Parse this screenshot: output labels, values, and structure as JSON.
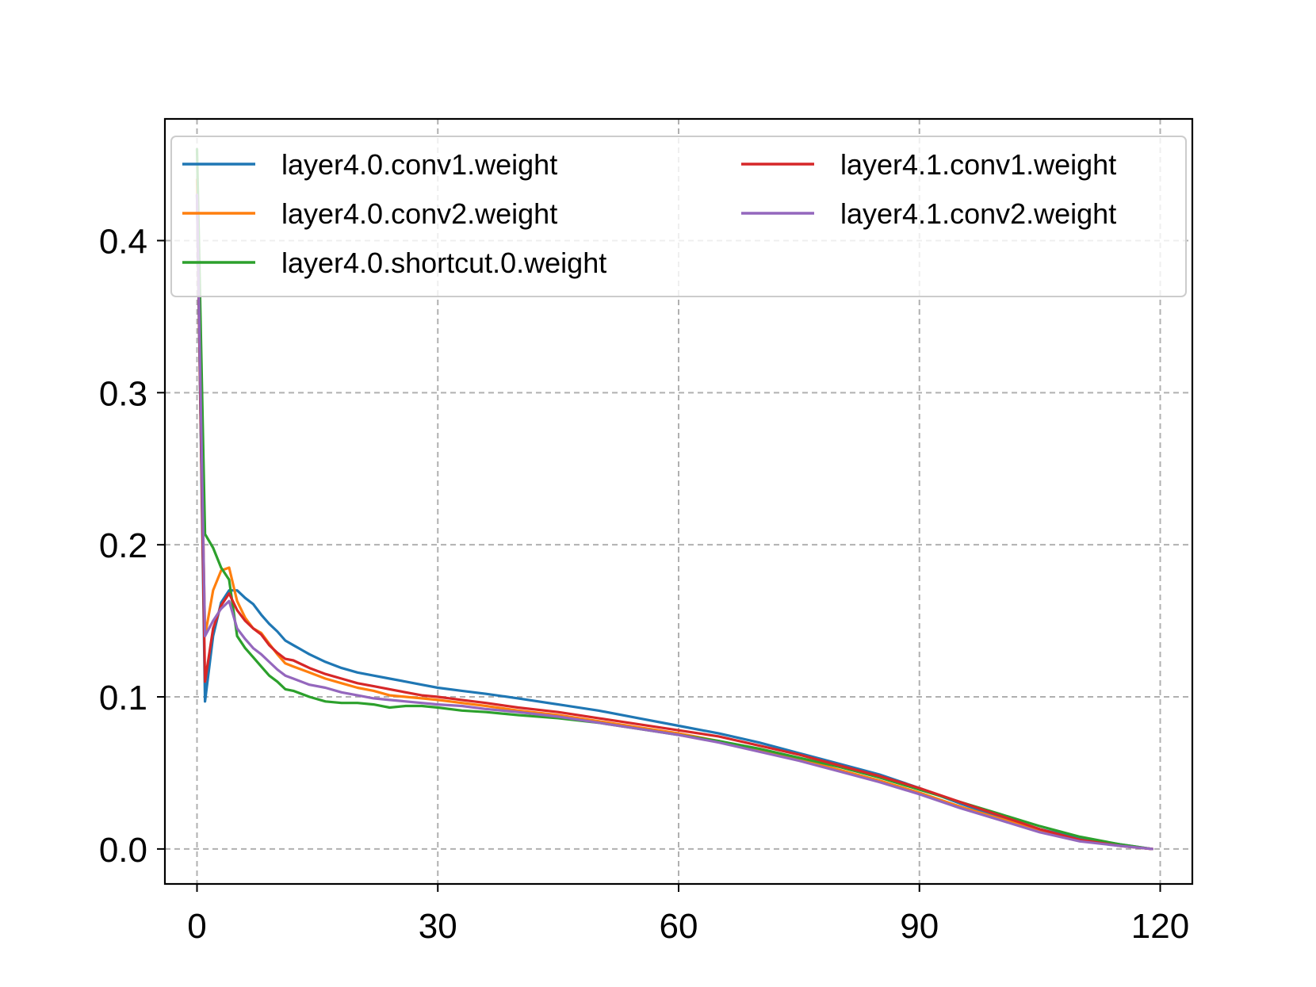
{
  "chart_data": {
    "type": "line",
    "title": "",
    "xlabel": "",
    "ylabel": "",
    "xlim": [
      -4,
      124
    ],
    "ylim": [
      -0.023,
      0.48
    ],
    "xticks": [
      0,
      30,
      60,
      90,
      120
    ],
    "yticks": [
      0.0,
      0.1,
      0.2,
      0.3,
      0.4
    ],
    "xtick_labels": [
      "0",
      "30",
      "60",
      "90",
      "120"
    ],
    "ytick_labels": [
      "0.0",
      "0.1",
      "0.2",
      "0.3",
      "0.4"
    ],
    "grid": true,
    "legend": {
      "position": "top",
      "columns": 2
    },
    "series": [
      {
        "name": "layer4.0.conv1.weight",
        "color": "#1f77b4",
        "points": [
          [
            0,
            0.43
          ],
          [
            1,
            0.097
          ],
          [
            2,
            0.14
          ],
          [
            3,
            0.162
          ],
          [
            4,
            0.17
          ],
          [
            5,
            0.17
          ],
          [
            6,
            0.165
          ],
          [
            7,
            0.161
          ],
          [
            8,
            0.154
          ],
          [
            9,
            0.148
          ],
          [
            10,
            0.143
          ],
          [
            11,
            0.137
          ],
          [
            12,
            0.134
          ],
          [
            14,
            0.128
          ],
          [
            16,
            0.123
          ],
          [
            18,
            0.119
          ],
          [
            20,
            0.116
          ],
          [
            22,
            0.114
          ],
          [
            24,
            0.112
          ],
          [
            26,
            0.11
          ],
          [
            28,
            0.108
          ],
          [
            30,
            0.106
          ],
          [
            33,
            0.104
          ],
          [
            36,
            0.102
          ],
          [
            40,
            0.099
          ],
          [
            45,
            0.095
          ],
          [
            50,
            0.091
          ],
          [
            55,
            0.086
          ],
          [
            60,
            0.081
          ],
          [
            65,
            0.076
          ],
          [
            70,
            0.07
          ],
          [
            75,
            0.063
          ],
          [
            80,
            0.056
          ],
          [
            85,
            0.049
          ],
          [
            90,
            0.04
          ],
          [
            95,
            0.03
          ],
          [
            100,
            0.021
          ],
          [
            105,
            0.013
          ],
          [
            110,
            0.007
          ],
          [
            115,
            0.003
          ],
          [
            119,
            0.0
          ]
        ]
      },
      {
        "name": "layer4.0.conv2.weight",
        "color": "#ff7f0e",
        "points": [
          [
            0,
            0.44
          ],
          [
            1,
            0.14
          ],
          [
            2,
            0.17
          ],
          [
            3,
            0.183
          ],
          [
            4,
            0.185
          ],
          [
            5,
            0.163
          ],
          [
            6,
            0.152
          ],
          [
            7,
            0.145
          ],
          [
            8,
            0.142
          ],
          [
            9,
            0.135
          ],
          [
            10,
            0.128
          ],
          [
            11,
            0.122
          ],
          [
            12,
            0.12
          ],
          [
            14,
            0.116
          ],
          [
            16,
            0.112
          ],
          [
            18,
            0.109
          ],
          [
            20,
            0.106
          ],
          [
            22,
            0.104
          ],
          [
            24,
            0.101
          ],
          [
            26,
            0.1
          ],
          [
            28,
            0.099
          ],
          [
            30,
            0.098
          ],
          [
            33,
            0.096
          ],
          [
            36,
            0.094
          ],
          [
            40,
            0.091
          ],
          [
            45,
            0.088
          ],
          [
            50,
            0.084
          ],
          [
            55,
            0.08
          ],
          [
            60,
            0.076
          ],
          [
            65,
            0.071
          ],
          [
            70,
            0.065
          ],
          [
            75,
            0.059
          ],
          [
            80,
            0.052
          ],
          [
            85,
            0.045
          ],
          [
            90,
            0.037
          ],
          [
            95,
            0.028
          ],
          [
            100,
            0.02
          ],
          [
            105,
            0.012
          ],
          [
            110,
            0.006
          ],
          [
            115,
            0.002
          ],
          [
            119,
            0.0
          ]
        ]
      },
      {
        "name": "layer4.0.shortcut.0.weight",
        "color": "#2ca02c",
        "points": [
          [
            0,
            0.46
          ],
          [
            1,
            0.207
          ],
          [
            2,
            0.198
          ],
          [
            3,
            0.185
          ],
          [
            4,
            0.177
          ],
          [
            5,
            0.14
          ],
          [
            6,
            0.132
          ],
          [
            7,
            0.126
          ],
          [
            8,
            0.12
          ],
          [
            9,
            0.114
          ],
          [
            10,
            0.11
          ],
          [
            11,
            0.105
          ],
          [
            12,
            0.104
          ],
          [
            14,
            0.1
          ],
          [
            16,
            0.097
          ],
          [
            18,
            0.096
          ],
          [
            20,
            0.096
          ],
          [
            22,
            0.095
          ],
          [
            24,
            0.093
          ],
          [
            26,
            0.094
          ],
          [
            28,
            0.094
          ],
          [
            30,
            0.093
          ],
          [
            33,
            0.091
          ],
          [
            36,
            0.09
          ],
          [
            40,
            0.088
          ],
          [
            45,
            0.086
          ],
          [
            50,
            0.083
          ],
          [
            55,
            0.079
          ],
          [
            60,
            0.075
          ],
          [
            65,
            0.071
          ],
          [
            70,
            0.066
          ],
          [
            75,
            0.06
          ],
          [
            80,
            0.054
          ],
          [
            85,
            0.047
          ],
          [
            90,
            0.039
          ],
          [
            95,
            0.031
          ],
          [
            100,
            0.023
          ],
          [
            105,
            0.015
          ],
          [
            110,
            0.008
          ],
          [
            115,
            0.003
          ],
          [
            119,
            0.0
          ]
        ]
      },
      {
        "name": "layer4.1.conv1.weight",
        "color": "#d62728",
        "points": [
          [
            0,
            0.43
          ],
          [
            1,
            0.11
          ],
          [
            2,
            0.145
          ],
          [
            3,
            0.16
          ],
          [
            4,
            0.168
          ],
          [
            5,
            0.157
          ],
          [
            6,
            0.15
          ],
          [
            7,
            0.145
          ],
          [
            8,
            0.141
          ],
          [
            9,
            0.134
          ],
          [
            10,
            0.129
          ],
          [
            11,
            0.125
          ],
          [
            12,
            0.124
          ],
          [
            14,
            0.119
          ],
          [
            16,
            0.115
          ],
          [
            18,
            0.112
          ],
          [
            20,
            0.109
          ],
          [
            22,
            0.107
          ],
          [
            24,
            0.105
          ],
          [
            26,
            0.103
          ],
          [
            28,
            0.101
          ],
          [
            30,
            0.1
          ],
          [
            33,
            0.098
          ],
          [
            36,
            0.096
          ],
          [
            40,
            0.093
          ],
          [
            45,
            0.09
          ],
          [
            50,
            0.086
          ],
          [
            55,
            0.082
          ],
          [
            60,
            0.078
          ],
          [
            65,
            0.074
          ],
          [
            70,
            0.068
          ],
          [
            75,
            0.062
          ],
          [
            80,
            0.055
          ],
          [
            85,
            0.048
          ],
          [
            90,
            0.04
          ],
          [
            95,
            0.031
          ],
          [
            100,
            0.022
          ],
          [
            105,
            0.013
          ],
          [
            110,
            0.006
          ],
          [
            115,
            0.002
          ],
          [
            119,
            0.0
          ]
        ]
      },
      {
        "name": "layer4.1.conv2.weight",
        "color": "#9467bd",
        "points": [
          [
            0,
            0.43
          ],
          [
            1,
            0.14
          ],
          [
            2,
            0.15
          ],
          [
            3,
            0.158
          ],
          [
            4,
            0.163
          ],
          [
            5,
            0.145
          ],
          [
            6,
            0.138
          ],
          [
            7,
            0.132
          ],
          [
            8,
            0.128
          ],
          [
            9,
            0.123
          ],
          [
            10,
            0.118
          ],
          [
            11,
            0.114
          ],
          [
            12,
            0.112
          ],
          [
            14,
            0.108
          ],
          [
            16,
            0.106
          ],
          [
            18,
            0.103
          ],
          [
            20,
            0.101
          ],
          [
            22,
            0.099
          ],
          [
            24,
            0.098
          ],
          [
            26,
            0.097
          ],
          [
            28,
            0.096
          ],
          [
            30,
            0.095
          ],
          [
            33,
            0.094
          ],
          [
            36,
            0.092
          ],
          [
            40,
            0.09
          ],
          [
            45,
            0.087
          ],
          [
            50,
            0.083
          ],
          [
            55,
            0.079
          ],
          [
            60,
            0.075
          ],
          [
            65,
            0.07
          ],
          [
            70,
            0.064
          ],
          [
            75,
            0.058
          ],
          [
            80,
            0.051
          ],
          [
            85,
            0.044
          ],
          [
            90,
            0.036
          ],
          [
            95,
            0.027
          ],
          [
            100,
            0.019
          ],
          [
            105,
            0.011
          ],
          [
            110,
            0.005
          ],
          [
            115,
            0.002
          ],
          [
            119,
            0.0
          ]
        ]
      }
    ]
  }
}
